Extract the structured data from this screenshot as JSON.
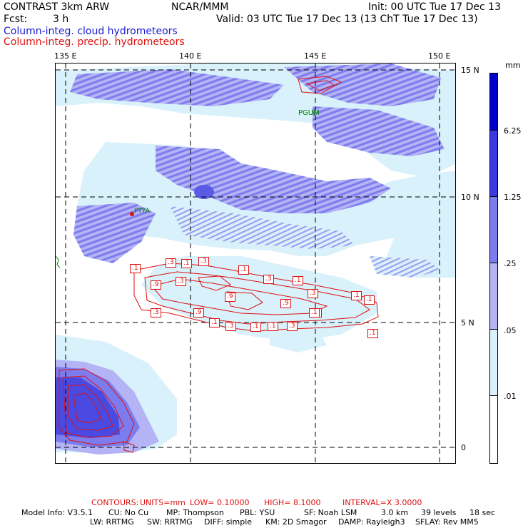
{
  "header": {
    "model": "CONTRAST  3km ARW",
    "center": "NCAR/MMM",
    "init": "Init: 00 UTC Tue 17 Dec 13",
    "fcst_label": "Fcst:",
    "fcst_value": "3 h",
    "valid": "Valid: 03 UTC Tue 17 Dec 13 (13 ChT Tue 17 Dec 13)",
    "field_cloud": "Column-integ. cloud hydrometeors",
    "field_precip": "Column-integ. precip. hydrometeors"
  },
  "axes": {
    "lon_labels": [
      "135 E",
      "140 E",
      "145 E",
      "150 E"
    ],
    "lat_labels": [
      "15 N",
      "10 N",
      "5 N",
      "0"
    ]
  },
  "stations": {
    "pgum": "PGUM",
    "ptya": "PTYA"
  },
  "contour_labels": [
    ".1",
    ".3",
    ".1",
    ".3",
    ".1",
    ".3",
    ".1",
    ".1",
    ".1",
    ".9",
    ".3",
    ".9",
    ".3",
    ".9",
    ".3",
    ".9",
    ".1",
    ".3",
    ".1",
    ".1",
    ".3",
    ".1",
    ".1",
    ".1"
  ],
  "legend": {
    "unit": "mm",
    "levels": [
      "6.25",
      "1.25",
      ".25",
      ".05",
      ".01"
    ],
    "colors": [
      "#0000cc",
      "#3a3ae0",
      "#7c7cee",
      "#b3b3f5",
      "#d8f1fb",
      "#ffffff"
    ]
  },
  "footer": {
    "contours_label": "CONTOURS:",
    "units": "UNITS=mm",
    "low": "LOW= 0.10000",
    "high": "HIGH= 8.1000",
    "interval": "INTERVAL=X  3.0000",
    "model_info_label": "Model Info: V3.5.1",
    "cu": "CU: No Cu",
    "mp": "MP: Thompson",
    "pbl": "PBL: YSU",
    "sf": "SF: Noah LSM",
    "res": "3.0 km",
    "levels": "39 levels",
    "dt": "18 sec",
    "lw": "LW: RRTMG",
    "sw": "SW: RRTMG",
    "diff": "DIFF: simple",
    "km": "KM: 2D Smagor",
    "damp": "DAMP: Rayleigh3",
    "sflay": "SFLAY: Rev MM5"
  }
}
